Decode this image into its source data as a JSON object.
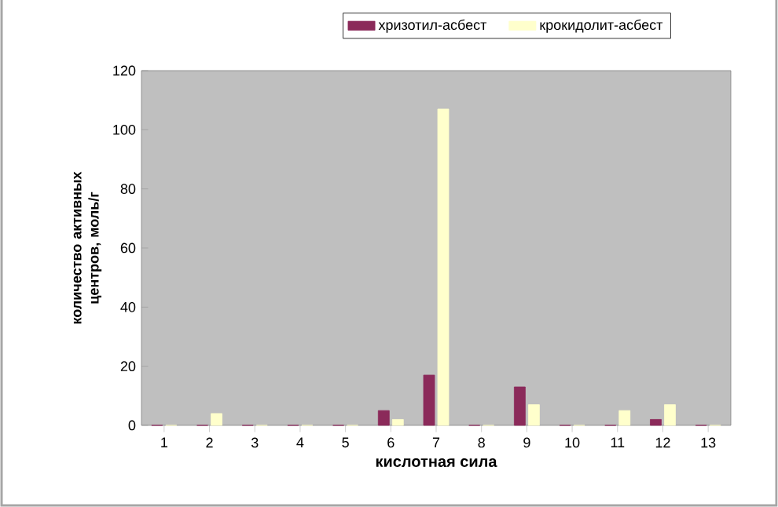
{
  "chart_data": {
    "type": "bar",
    "xlabel": "кислотная сила",
    "ylabel": "количество активных центров, моль/г",
    "categories": [
      "1",
      "2",
      "3",
      "4",
      "5",
      "6",
      "7",
      "8",
      "9",
      "10",
      "11",
      "12",
      "13"
    ],
    "series": [
      {
        "name": "хризотил-асбест",
        "color": "#8b2a5a",
        "values": [
          0,
          0,
          0,
          0,
          0,
          5,
          17,
          0,
          13,
          0,
          0,
          2,
          0
        ]
      },
      {
        "name": "крокидолит-асбест",
        "color": "#ffffcc",
        "values": [
          0,
          4,
          0,
          0,
          0,
          2,
          107,
          0,
          7,
          0,
          5,
          7,
          0
        ]
      }
    ],
    "ylim": [
      0,
      120
    ],
    "yticks": [
      0,
      20,
      40,
      60,
      80,
      100,
      120
    ],
    "grid": false,
    "legend": "top"
  }
}
